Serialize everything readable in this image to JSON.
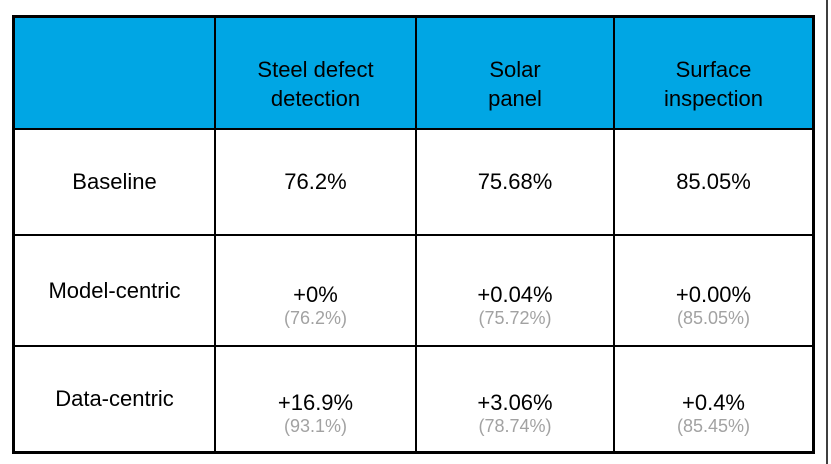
{
  "colors": {
    "header_blue": "#00A6E4",
    "border": "#000000",
    "gray_text": "#A2A2A2",
    "edge_line": "#3F3F3F"
  },
  "table": {
    "header": {
      "cells": [
        {
          "lines": [
            "",
            ""
          ]
        },
        {
          "lines": [
            "Steel defect",
            "detection"
          ]
        },
        {
          "lines": [
            "Solar",
            "panel"
          ]
        },
        {
          "lines": [
            "Surface",
            "inspection"
          ]
        }
      ]
    },
    "rows": [
      {
        "label": "Baseline",
        "cells": [
          {
            "main": "76.2%"
          },
          {
            "main": "75.68%"
          },
          {
            "main": "85.05%"
          }
        ]
      },
      {
        "label": "Model-centric",
        "cells": [
          {
            "main": "+0%",
            "sub": "(76.2%)"
          },
          {
            "main": "+0.04%",
            "sub": "(75.72%)"
          },
          {
            "main": "+0.00%",
            "sub": "(85.05%)"
          }
        ]
      },
      {
        "label": "Data-centric",
        "cells": [
          {
            "main": "+16.9%",
            "sub": "(93.1%)"
          },
          {
            "main": "+3.06%",
            "sub": "(78.74%)"
          },
          {
            "main": "+0.4%",
            "sub": "(85.45%)"
          }
        ]
      }
    ]
  },
  "chart_data": {
    "type": "table",
    "columns": [
      "",
      "Steel defect detection",
      "Solar panel",
      "Surface inspection"
    ],
    "rows": [
      [
        "Baseline",
        "76.2%",
        "75.68%",
        "85.05%"
      ],
      [
        "Model-centric",
        "+0% (76.2%)",
        "+0.04% (75.72%)",
        "+0.00% (85.05%)"
      ],
      [
        "Data-centric",
        "+16.9% (93.1%)",
        "+3.06% (78.74%)",
        "+0.4% (85.45%)"
      ]
    ],
    "notes": "Main value = improvement over baseline; parenthetical gray value = absolute accuracy"
  }
}
